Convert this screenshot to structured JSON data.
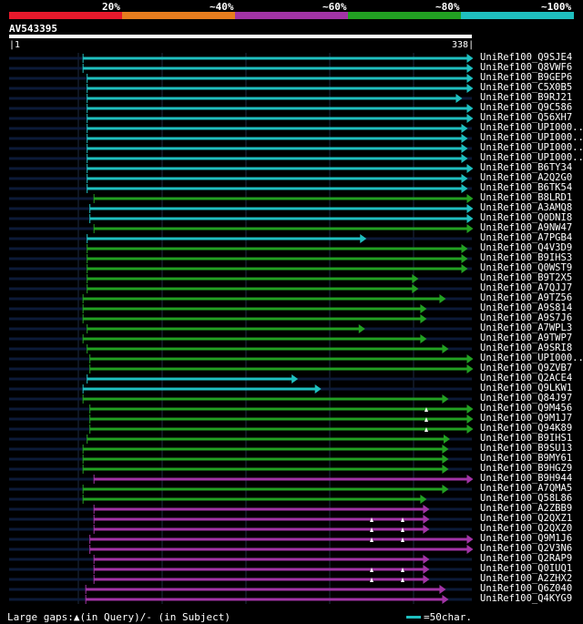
{
  "query": {
    "name": "AV543395",
    "start": "1",
    "end": "338",
    "length": 338
  },
  "legend": {
    "labels": [
      "20%",
      "~40%",
      "~60%",
      "~80%",
      "~100%"
    ],
    "colors": [
      "#e8192c",
      "#e87d1e",
      "#a234a6",
      "#22a022",
      "#1fbfbf"
    ]
  },
  "colors": {
    "track": "#0c1a38",
    "grid": "#1e2a40",
    "arrowhead": "#ffffff"
  },
  "hits": [
    {
      "name": "UniRef100_Q9SJE4",
      "c": 4,
      "s": 54,
      "e": 339,
      "lt": false
    },
    {
      "name": "UniRef100_Q8VWF6",
      "c": 4,
      "s": 54,
      "e": 339,
      "lt": false
    },
    {
      "name": "UniRef100_B9GEP6",
      "c": 4,
      "s": 57,
      "e": 339,
      "lt": false
    },
    {
      "name": "UniRef100_C5X0B5",
      "c": 4,
      "s": 57,
      "e": 339,
      "lt": false
    },
    {
      "name": "UniRef100_B9RJ21",
      "c": 4,
      "s": 57,
      "e": 331,
      "lt": false
    },
    {
      "name": "UniRef100_Q9C586",
      "c": 4,
      "s": 57,
      "e": 339,
      "lt": false
    },
    {
      "name": "UniRef100_Q56XH7",
      "c": 4,
      "s": 57,
      "e": 339,
      "lt": false
    },
    {
      "name": "UniRef100_UPI000..",
      "c": 4,
      "s": 57,
      "e": 335,
      "lt": false
    },
    {
      "name": "UniRef100_UPI000..",
      "c": 4,
      "s": 57,
      "e": 335,
      "lt": false
    },
    {
      "name": "UniRef100_UPI000..",
      "c": 4,
      "s": 57,
      "e": 335,
      "lt": false
    },
    {
      "name": "UniRef100_UPI000..",
      "c": 4,
      "s": 57,
      "e": 335,
      "lt": false
    },
    {
      "name": "UniRef100_B6TY34",
      "c": 4,
      "s": 57,
      "e": 339,
      "lt": false
    },
    {
      "name": "UniRef100_A2Q2G0",
      "c": 4,
      "s": 57,
      "e": 335,
      "lt": false
    },
    {
      "name": "UniRef100_B6TK54",
      "c": 4,
      "s": 57,
      "e": 335,
      "lt": false
    },
    {
      "name": "UniRef100_B8LRD1",
      "c": 3,
      "s": 62,
      "e": 339,
      "lt": false
    },
    {
      "name": "UniRef100_A3AMQ8",
      "c": 4,
      "s": 59,
      "e": 339,
      "lt": false
    },
    {
      "name": "UniRef100_Q0DNI8",
      "c": 4,
      "s": 59,
      "e": 339,
      "lt": false
    },
    {
      "name": "UniRef100_A9NW47",
      "c": 3,
      "s": 62,
      "e": 339,
      "lt": false
    },
    {
      "name": "UniRef100_A7PGB4",
      "c": 4,
      "s": 57,
      "e": 261,
      "lt": false
    },
    {
      "name": "UniRef100_Q4V3D9",
      "c": 3,
      "s": 57,
      "e": 335,
      "lt": false
    },
    {
      "name": "UniRef100_B9IHS3",
      "c": 3,
      "s": 57,
      "e": 335,
      "lt": false
    },
    {
      "name": "UniRef100_Q0WST9",
      "c": 3,
      "s": 57,
      "e": 335,
      "lt": false
    },
    {
      "name": "UniRef100_B9T2X5",
      "c": 3,
      "s": 57,
      "e": 299,
      "lt": false
    },
    {
      "name": "UniRef100_A7QJJ7",
      "c": 3,
      "s": 57,
      "e": 299,
      "lt": false
    },
    {
      "name": "UniRef100_A9TZ56",
      "c": 3,
      "s": 54,
      "e": 319,
      "lt": false
    },
    {
      "name": "UniRef100_A9S814",
      "c": 3,
      "s": 54,
      "e": 305,
      "lt": false
    },
    {
      "name": "UniRef100_A9S7J6",
      "c": 3,
      "s": 54,
      "e": 305,
      "lt": false
    },
    {
      "name": "UniRef100_A7WPL3",
      "c": 3,
      "s": 57,
      "e": 260,
      "lt": false
    },
    {
      "name": "UniRef100_A9TWP7",
      "c": 3,
      "s": 54,
      "e": 305,
      "lt": false
    },
    {
      "name": "UniRef100_A9SRI8",
      "c": 3,
      "s": 57,
      "e": 321,
      "lt": false
    },
    {
      "name": "UniRef100_UPI000..",
      "c": 3,
      "s": 59,
      "e": 339,
      "lt": false
    },
    {
      "name": "UniRef100_Q9ZVB7",
      "c": 3,
      "s": 59,
      "e": 339,
      "lt": false
    },
    {
      "name": "UniRef100_Q2ACE4",
      "c": 4,
      "s": 57,
      "e": 211,
      "lt": false
    },
    {
      "name": "UniRef100_Q9LKW1",
      "c": 4,
      "s": 54,
      "e": 228,
      "lt": false
    },
    {
      "name": "UniRef100_Q84J97",
      "c": 3,
      "s": 54,
      "e": 321,
      "lt": false
    },
    {
      "name": "UniRef100_Q9M456",
      "c": 3,
      "s": 59,
      "e": 339,
      "lt": true
    },
    {
      "name": "UniRef100_Q9M1J7",
      "c": 3,
      "s": 59,
      "e": 339,
      "lt": true
    },
    {
      "name": "UniRef100_Q94K89",
      "c": 3,
      "s": 59,
      "e": 339,
      "lt": true
    },
    {
      "name": "UniRef100_B9IHS1",
      "c": 3,
      "s": 57,
      "e": 322,
      "lt": false
    },
    {
      "name": "UniRef100_B9SU13",
      "c": 3,
      "s": 54,
      "e": 321,
      "lt": false
    },
    {
      "name": "UniRef100_B9MY61",
      "c": 3,
      "s": 54,
      "e": 321,
      "lt": false
    },
    {
      "name": "UniRef100_B9HGZ9",
      "c": 3,
      "s": 54,
      "e": 321,
      "lt": false
    },
    {
      "name": "UniRef100_B9H944",
      "c": 2,
      "s": 62,
      "e": 339,
      "lt": false
    },
    {
      "name": "UniRef100_A7QMA5",
      "c": 3,
      "s": 54,
      "e": 321,
      "lt": false
    },
    {
      "name": "UniRef100_Q58L86",
      "c": 3,
      "s": 54,
      "e": 305,
      "lt": false
    },
    {
      "name": "UniRef100_A2ZBB9",
      "c": 2,
      "s": 62,
      "e": 307,
      "lt": false
    },
    {
      "name": "UniRef100_Q2QXZ1",
      "c": 2,
      "s": 62,
      "e": 307,
      "lt": true
    },
    {
      "name": "UniRef100_Q2QXZ0",
      "c": 2,
      "s": 62,
      "e": 307,
      "lt": true
    },
    {
      "name": "UniRef100_Q9M1J6",
      "c": 2,
      "s": 59,
      "e": 339,
      "lt": true
    },
    {
      "name": "UniRef100_Q2V3N6",
      "c": 2,
      "s": 59,
      "e": 339,
      "lt": false
    },
    {
      "name": "UniRef100_Q2RAP9",
      "c": 2,
      "s": 62,
      "e": 307,
      "lt": false
    },
    {
      "name": "UniRef100_Q0IUQ1",
      "c": 2,
      "s": 62,
      "e": 307,
      "lt": true
    },
    {
      "name": "UniRef100_A2ZHX2",
      "c": 2,
      "s": 62,
      "e": 307,
      "lt": true
    },
    {
      "name": "UniRef100_Q6Z040",
      "c": 2,
      "s": 56,
      "e": 319,
      "lt": false
    },
    {
      "name": "UniRef100_Q4KYG9",
      "c": 2,
      "s": 56,
      "e": 321,
      "lt": false
    }
  ],
  "footer": {
    "gaps_text": "Large gaps:▲(in Query)/- (in Subject)",
    "scale_text": "=50char."
  }
}
